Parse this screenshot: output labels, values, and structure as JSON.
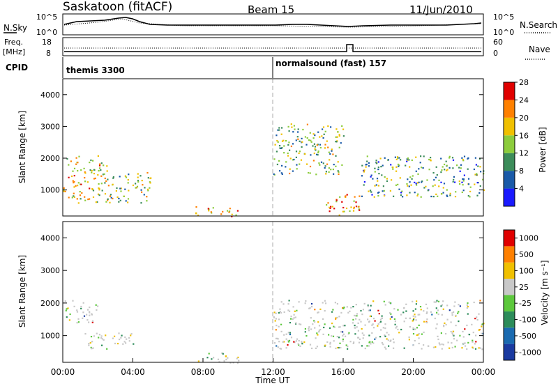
{
  "header": {
    "station": "Saskatoon (fitACF)",
    "beam": "Beam 15",
    "date": "11/Jun/2010"
  },
  "top_panels": {
    "nsky_label": "N.Sky",
    "nsearch_label": "N.Search",
    "noise_ticks_left": [
      "10^5",
      "10^0"
    ],
    "noise_ticks_right": [
      "10^5",
      "10^0"
    ],
    "freq_label": "Freq.",
    "freq_unit": "[MHz]",
    "freq_ticks": [
      "18",
      "8"
    ],
    "nave_label": "Nave",
    "nave_ticks": [
      "60",
      "0"
    ],
    "cpid_label": "CPID",
    "cpid_segments": [
      {
        "label": "themis 3300",
        "start_hour": 0
      },
      {
        "label": "normalsound (fast) 157",
        "start_hour": 12
      }
    ]
  },
  "chart_data": [
    {
      "type": "heatmap",
      "title": "",
      "ylabel": "Slant Range [km]",
      "xlabel": "",
      "ylim": [
        180,
        4500
      ],
      "yticks": [
        "1000",
        "2000",
        "3000",
        "4000"
      ],
      "colorbar": {
        "label": "Power [dB]",
        "ticks": [
          "4",
          "8",
          "12",
          "16",
          "20",
          "24",
          "28"
        ],
        "colors": [
          "#1a1aff",
          "#1a5aa8",
          "#3c8c5a",
          "#8ccc3c",
          "#f0c000",
          "#ff8000",
          "#e00000"
        ]
      },
      "echo_regions_hours_km": [
        {
          "t": [
            0.0,
            2.5
          ],
          "r": [
            600,
            2100
          ],
          "level": 0.6
        },
        {
          "t": [
            2.5,
            5.0
          ],
          "r": [
            600,
            1600
          ],
          "level": 0.5
        },
        {
          "t": [
            7.5,
            10.0
          ],
          "r": [
            180,
            500
          ],
          "level": 0.8
        },
        {
          "t": [
            12.0,
            16.0
          ],
          "r": [
            1500,
            3100
          ],
          "level": 0.45
        },
        {
          "t": [
            15.0,
            17.0
          ],
          "r": [
            180,
            900
          ],
          "level": 0.8
        },
        {
          "t": [
            17.0,
            24.0
          ],
          "r": [
            800,
            2100
          ],
          "level": 0.4
        }
      ]
    },
    {
      "type": "heatmap",
      "title": "",
      "ylabel": "Slant Range [km]",
      "xlabel": "Time UT",
      "xticks": [
        "00:00",
        "04:00",
        "08:00",
        "12:00",
        "16:00",
        "20:00",
        "00:00"
      ],
      "ylim": [
        180,
        4500
      ],
      "yticks": [
        "1000",
        "2000",
        "3000",
        "4000"
      ],
      "colorbar": {
        "label": "Velocity [m s⁻¹]",
        "ticks": [
          "1000",
          "500",
          "100",
          "25",
          "-25",
          "-100",
          "-500",
          "-1000"
        ],
        "colors": [
          "#1a3aa0",
          "#1a6ab0",
          "#2c8c5a",
          "#5cc83c",
          "#c8c8c8",
          "#f0c000",
          "#ff8000",
          "#e00000"
        ]
      },
      "echo_regions_hours_km": [
        {
          "t": [
            0.0,
            2.0
          ],
          "r": [
            1400,
            2100
          ],
          "level": 0.5
        },
        {
          "t": [
            1.0,
            4.0
          ],
          "r": [
            600,
            1100
          ],
          "level": 0.3
        },
        {
          "t": [
            7.5,
            10.0
          ],
          "r": [
            180,
            500
          ],
          "level": 0.6
        },
        {
          "t": [
            12.0,
            24.0
          ],
          "r": [
            600,
            2100
          ],
          "level": 0.5
        }
      ]
    }
  ]
}
